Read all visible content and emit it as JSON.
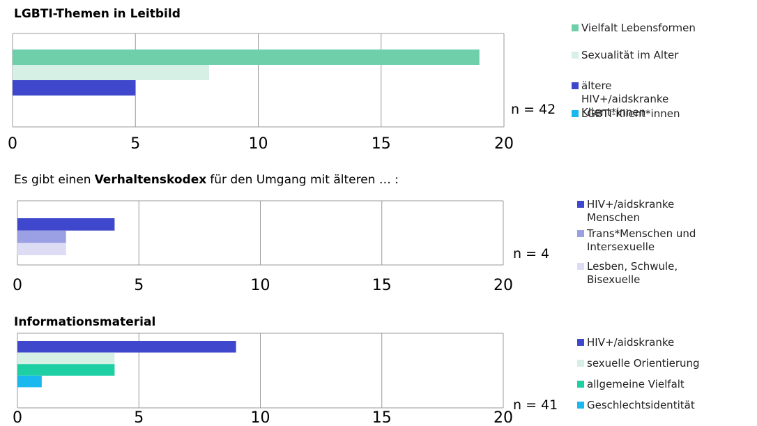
{
  "chart_data": [
    {
      "type": "bar",
      "orientation": "horizontal",
      "title": [
        "LGBTI-Themen in Leitbild"
      ],
      "title_bold": [
        true
      ],
      "annotation": "n = 42",
      "xlim": [
        0,
        20
      ],
      "xticks": [
        0,
        5,
        10,
        15,
        20
      ],
      "grid": true,
      "legend": "right",
      "series": [
        {
          "name": "Vielfalt Lebensformen",
          "color": "#6fcfab",
          "values": [
            19
          ]
        },
        {
          "name": "Sexualität im Alter",
          "color": "#d6f0e6",
          "values": [
            8
          ]
        },
        {
          "name": "ältere HIV+/aidskranke Klient*innen",
          "color": "#3f48cc",
          "values": [
            5
          ]
        },
        {
          "name": "LGBTI-Klient*innen",
          "color": "#19b8ee",
          "values": [
            0
          ]
        }
      ]
    },
    {
      "type": "bar",
      "orientation": "horizontal",
      "title": [
        "Es gibt einen",
        "Verhaltenskodex",
        "für den Umgang mit älteren … :"
      ],
      "title_bold": [
        false,
        true,
        false
      ],
      "annotation": "n = 4",
      "xlim": [
        0,
        20
      ],
      "xticks": [
        0,
        5,
        10,
        15,
        20
      ],
      "grid": true,
      "legend": "right",
      "series": [
        {
          "name": "HIV+/aidskranke Menschen",
          "color": "#3f48cc",
          "values": [
            4
          ]
        },
        {
          "name": "Trans*Menschen und Intersexuelle",
          "color": "#9b9fe3",
          "values": [
            2
          ]
        },
        {
          "name": "Lesben, Schwule, Bisexuelle",
          "color": "#dcdcf5",
          "values": [
            2
          ]
        }
      ]
    },
    {
      "type": "bar",
      "orientation": "horizontal",
      "title": [
        "Informationsmaterial"
      ],
      "title_bold": [
        true
      ],
      "annotation": "n = 41",
      "xlim": [
        0,
        20
      ],
      "xticks": [
        0,
        5,
        10,
        15,
        20
      ],
      "grid": true,
      "legend": "right",
      "series": [
        {
          "name": "HIV+/aidskranke",
          "color": "#3f48cc",
          "values": [
            9
          ]
        },
        {
          "name": "sexuelle Orientierung",
          "color": "#d6f0e6",
          "values": [
            4
          ]
        },
        {
          "name": "allgemeine Vielfalt",
          "color": "#1ecfa3",
          "values": [
            4
          ]
        },
        {
          "name": "Geschlechtsidentität",
          "color": "#19b8ee",
          "values": [
            1
          ]
        }
      ]
    }
  ]
}
